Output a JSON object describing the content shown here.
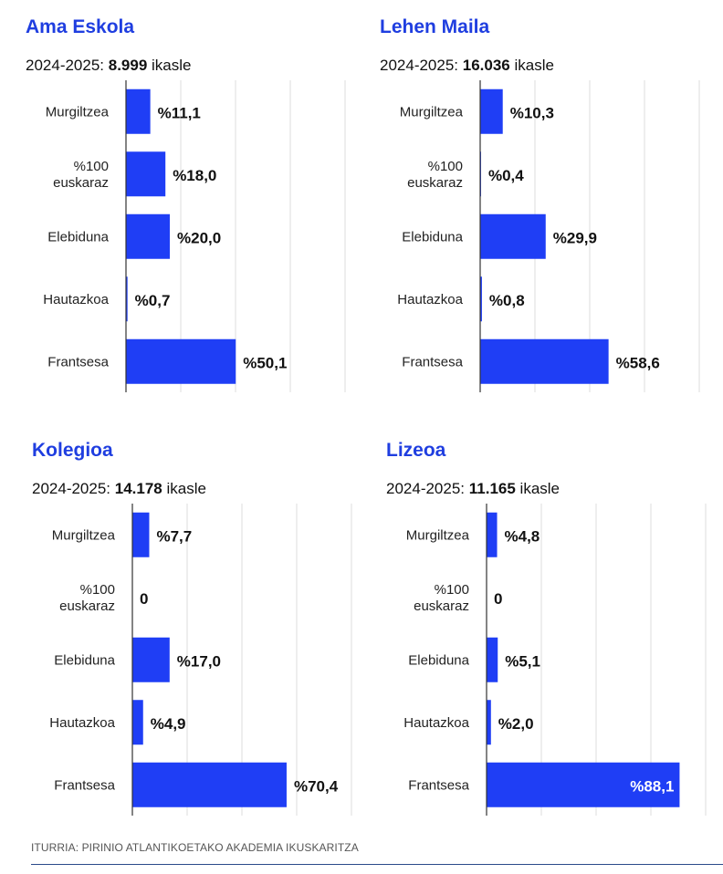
{
  "source": "ITURRIA: PIRINIO ATLANTIKOETAKO AKADEMIA IKUSKARITZA",
  "colors": {
    "bar": "#1f3ef5",
    "title": "#1f3ee0",
    "grid": "#dddddd",
    "axis": "#333333"
  },
  "chart_data": [
    {
      "type": "bar",
      "orientation": "horizontal",
      "title": "Ama Eskola",
      "subtitle_prefix": "2024-2025: ",
      "subtitle_value": "8.999",
      "subtitle_suffix": " ikasle",
      "categories": [
        [
          "Murgiltzea"
        ],
        [
          "%100",
          "euskaraz"
        ],
        [
          "Elebiduna"
        ],
        [
          "Hautazkoa"
        ],
        [
          "Frantsesa"
        ]
      ],
      "values": [
        11.1,
        18.0,
        20.0,
        0.7,
        50.1
      ],
      "labels": [
        "%11,1",
        "%18,0",
        "%20,0",
        "%0,7",
        "%50,1"
      ],
      "xlim": [
        0,
        100
      ],
      "grid": true
    },
    {
      "type": "bar",
      "orientation": "horizontal",
      "title": "Lehen Maila",
      "subtitle_prefix": "2024-2025: ",
      "subtitle_value": "16.036",
      "subtitle_suffix": " ikasle",
      "categories": [
        [
          "Murgiltzea"
        ],
        [
          "%100",
          "euskaraz"
        ],
        [
          "Elebiduna"
        ],
        [
          "Hautazkoa"
        ],
        [
          "Frantsesa"
        ]
      ],
      "values": [
        10.3,
        0.4,
        29.9,
        0.8,
        58.6
      ],
      "labels": [
        "%10,3",
        "%0,4",
        "%29,9",
        "%0,8",
        "%58,6"
      ],
      "xlim": [
        0,
        100
      ],
      "grid": true
    },
    {
      "type": "bar",
      "orientation": "horizontal",
      "title": "Kolegioa",
      "subtitle_prefix": "2024-2025: ",
      "subtitle_value": "14.178",
      "subtitle_suffix": " ikasle",
      "categories": [
        [
          "Murgiltzea"
        ],
        [
          "%100",
          "euskaraz"
        ],
        [
          "Elebiduna"
        ],
        [
          "Hautazkoa"
        ],
        [
          "Frantsesa"
        ]
      ],
      "values": [
        7.7,
        0,
        17.0,
        4.9,
        70.4
      ],
      "labels": [
        "%7,7",
        "0",
        "%17,0",
        "%4,9",
        "%70,4"
      ],
      "xlim": [
        0,
        100
      ],
      "grid": true
    },
    {
      "type": "bar",
      "orientation": "horizontal",
      "title": "Lizeoa",
      "subtitle_prefix": "2024-2025: ",
      "subtitle_value": "11.165",
      "subtitle_suffix": " ikasle",
      "categories": [
        [
          "Murgiltzea"
        ],
        [
          "%100",
          "euskaraz"
        ],
        [
          "Elebiduna"
        ],
        [
          "Hautazkoa"
        ],
        [
          "Frantsesa"
        ]
      ],
      "values": [
        4.8,
        0,
        5.1,
        2.0,
        88.1
      ],
      "labels": [
        "%4,8",
        "0",
        "%5,1",
        "%2,0",
        "%88,1"
      ],
      "xlim": [
        0,
        100
      ],
      "grid": true
    }
  ]
}
